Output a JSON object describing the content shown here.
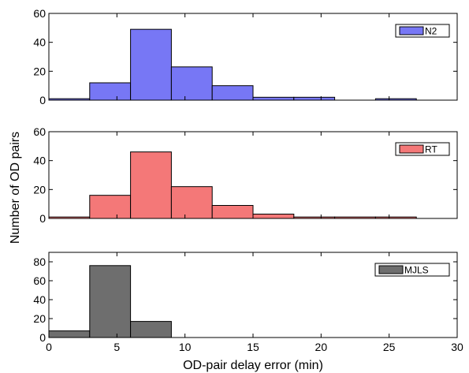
{
  "chart_data": [
    {
      "type": "bar",
      "series_name": "N2",
      "color": "#7777f5",
      "bin_edges": [
        0,
        3,
        6,
        9,
        12,
        15,
        18,
        21,
        24,
        27
      ],
      "values": [
        1,
        12,
        49,
        23,
        10,
        2,
        2,
        0,
        1
      ],
      "xlim": [
        0,
        30
      ],
      "ylim": [
        0,
        60
      ],
      "yticks": [
        0,
        20,
        40,
        60
      ],
      "legend_position": "top-right"
    },
    {
      "type": "bar",
      "series_name": "RT",
      "color": "#f47878",
      "bin_edges": [
        0,
        3,
        6,
        9,
        12,
        15,
        18,
        21,
        24,
        27
      ],
      "values": [
        1,
        16,
        46,
        22,
        9,
        3,
        1,
        1,
        1
      ],
      "xlim": [
        0,
        30
      ],
      "ylim": [
        0,
        60
      ],
      "yticks": [
        0,
        20,
        40,
        60
      ],
      "legend_position": "top-right"
    },
    {
      "type": "bar",
      "series_name": "MJLS",
      "color": "#6e6e6e",
      "bin_edges": [
        0,
        3,
        6,
        9,
        12,
        15,
        18,
        21,
        24,
        27
      ],
      "values": [
        7,
        76,
        17,
        0,
        0,
        0,
        0,
        0,
        0
      ],
      "xlim": [
        0,
        30
      ],
      "ylim": [
        0,
        90
      ],
      "yticks": [
        0,
        20,
        40,
        60,
        80
      ],
      "legend_position": "top-right"
    }
  ],
  "xticks": [
    0,
    5,
    10,
    15,
    20,
    25,
    30
  ],
  "xlabel": "OD-pair delay error (min)",
  "ylabel": "Number of OD pairs"
}
